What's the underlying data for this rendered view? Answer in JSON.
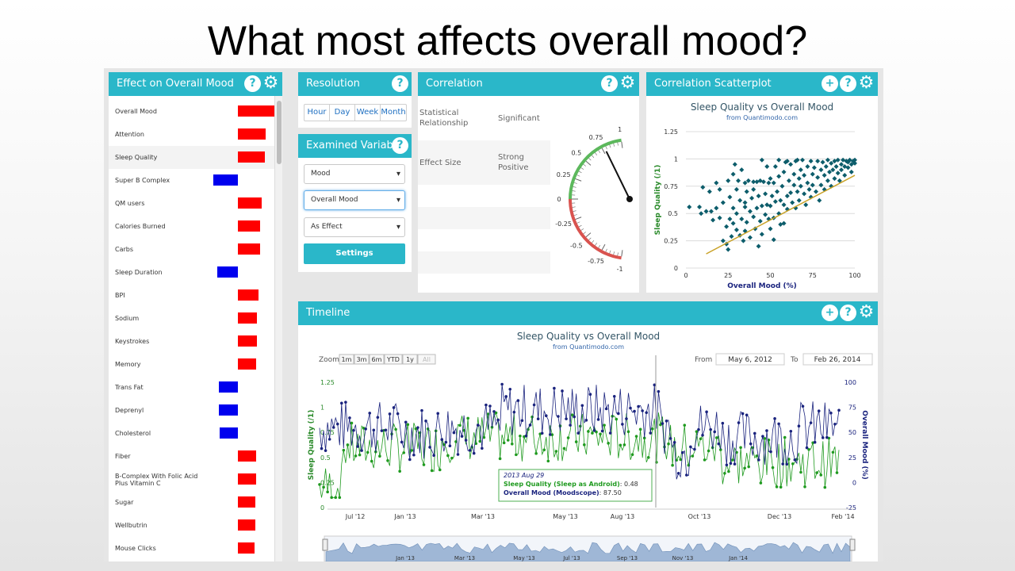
{
  "slide_title": "What most affects overall mood?",
  "effect_panel": {
    "title": "Effect on Overall Mood",
    "items": [
      {
        "label": "Overall Mood",
        "value": 1.0
      },
      {
        "label": "Attention",
        "value": 0.67
      },
      {
        "label": "Sleep Quality",
        "value": 0.65
      },
      {
        "label": "Super B Complex",
        "value": -0.6
      },
      {
        "label": "QM users",
        "value": 0.57
      },
      {
        "label": "Calories Burned",
        "value": 0.53
      },
      {
        "label": "Carbs",
        "value": 0.53
      },
      {
        "label": "Sleep Duration",
        "value": -0.5
      },
      {
        "label": "BPI",
        "value": 0.5
      },
      {
        "label": "Sodium",
        "value": 0.47
      },
      {
        "label": "Keystrokes",
        "value": 0.46
      },
      {
        "label": "Memory",
        "value": 0.45
      },
      {
        "label": "Trans Fat",
        "value": -0.46
      },
      {
        "label": "Deprenyl",
        "value": -0.46
      },
      {
        "label": "Cholesterol",
        "value": -0.44
      },
      {
        "label": "Fiber",
        "value": 0.44
      },
      {
        "label": "B-Complex With Folic Acid Plus Vitamin C",
        "value": 0.44
      },
      {
        "label": "Sugar",
        "value": 0.43
      },
      {
        "label": "Wellbutrin",
        "value": 0.43
      },
      {
        "label": "Mouse Clicks",
        "value": 0.4
      }
    ],
    "colors": {
      "positive": "#ff0000",
      "negative": "#0000ee"
    }
  },
  "resolution": {
    "title": "Resolution",
    "buttons": [
      "Hour",
      "Day",
      "Week",
      "Month"
    ]
  },
  "examined_variable": {
    "title": "Examined Variable",
    "selects": [
      "Mood",
      "Overall Mood",
      "As Effect"
    ],
    "settings_label": "Settings"
  },
  "correlation": {
    "title": "Correlation",
    "rows": [
      {
        "label": "Statistical Relationship",
        "value": "Significant"
      },
      {
        "label": "Effect Size",
        "value": "Strong Positive"
      }
    ],
    "gauge": {
      "value": 0.78,
      "ticks": [
        "1",
        "0.75",
        "0.5",
        "0.25",
        "0",
        "-0.25",
        "-0.5",
        "-0.75",
        "-1"
      ]
    }
  },
  "scatter_panel": {
    "title": "Correlation Scatterplot",
    "chart_data": {
      "type": "scatter",
      "title": "Sleep Quality vs Overall Mood",
      "subtitle": "from Quantimodo.com",
      "xlabel": "Overall Mood (%)",
      "ylabel": "Sleep Quality (/1)",
      "xlim": [
        0,
        100
      ],
      "ylim": [
        0,
        1.25
      ],
      "xticks": [
        "0",
        "25",
        "50",
        "75",
        "100"
      ],
      "yticks": [
        "0",
        "0.25",
        "0.5",
        "0.75",
        "1",
        "1.25"
      ],
      "trendline": [
        [
          12,
          0.13
        ],
        [
          100,
          0.85
        ]
      ],
      "point_color": "#0d5d6b",
      "trend_color": "#c9a227",
      "points": [
        [
          2,
          0.56
        ],
        [
          8,
          0.56
        ],
        [
          9,
          0.5
        ],
        [
          10,
          0.74
        ],
        [
          12,
          0.52
        ],
        [
          14,
          0.7
        ],
        [
          15,
          0.52
        ],
        [
          16,
          0.44
        ],
        [
          18,
          0.78
        ],
        [
          18,
          0.55
        ],
        [
          20,
          0.72
        ],
        [
          20,
          0.46
        ],
        [
          22,
          0.25
        ],
        [
          22,
          0.6
        ],
        [
          24,
          0.38
        ],
        [
          24,
          0.22
        ],
        [
          25,
          0.8
        ],
        [
          25,
          0.17
        ],
        [
          26,
          0.65
        ],
        [
          26,
          0.45
        ],
        [
          27,
          0.29
        ],
        [
          28,
          0.86
        ],
        [
          28,
          0.55
        ],
        [
          28,
          0.41
        ],
        [
          29,
          0.95
        ],
        [
          30,
          0.72
        ],
        [
          30,
          0.5
        ],
        [
          30,
          0.35
        ],
        [
          31,
          0.8
        ],
        [
          32,
          0.3
        ],
        [
          32,
          0.62
        ],
        [
          33,
          0.9
        ],
        [
          33,
          0.45
        ],
        [
          34,
          0.25
        ],
        [
          35,
          0.78
        ],
        [
          35,
          0.56
        ],
        [
          35,
          0.34
        ],
        [
          36,
          0.7
        ],
        [
          36,
          0.42
        ],
        [
          37,
          0.8
        ],
        [
          38,
          0.52
        ],
        [
          38,
          0.28
        ],
        [
          39,
          0.64
        ],
        [
          40,
          0.79
        ],
        [
          40,
          0.47
        ],
        [
          40,
          0.72
        ],
        [
          41,
          0.36
        ],
        [
          42,
          0.55
        ],
        [
          42,
          0.79
        ],
        [
          43,
          0.66
        ],
        [
          44,
          0.43
        ],
        [
          44,
          0.8
        ],
        [
          45,
          0.57
        ],
        [
          45,
          0.31
        ],
        [
          46,
          0.79
        ],
        [
          47,
          0.49
        ],
        [
          47,
          0.68
        ],
        [
          48,
          0.58
        ],
        [
          48,
          0.93
        ],
        [
          49,
          0.45
        ],
        [
          49,
          0.78
        ],
        [
          50,
          0.57
        ],
        [
          50,
          0.82
        ],
        [
          50,
          0.36
        ],
        [
          51,
          0.66
        ],
        [
          52,
          0.46
        ],
        [
          52,
          0.78
        ],
        [
          53,
          0.61
        ],
        [
          53,
          0.93
        ],
        [
          54,
          0.7
        ],
        [
          55,
          0.5
        ],
        [
          55,
          0.84
        ],
        [
          56,
          0.62
        ],
        [
          56,
          0.4
        ],
        [
          57,
          0.75
        ],
        [
          58,
          0.88
        ],
        [
          58,
          0.58
        ],
        [
          59,
          0.97
        ],
        [
          60,
          0.66
        ],
        [
          60,
          0.54
        ],
        [
          61,
          0.8
        ],
        [
          62,
          0.69
        ],
        [
          62,
          0.95
        ],
        [
          63,
          0.6
        ],
        [
          64,
          0.76
        ],
        [
          64,
          0.86
        ],
        [
          65,
          0.55
        ],
        [
          65,
          0.98
        ],
        [
          66,
          0.7
        ],
        [
          67,
          0.82
        ],
        [
          67,
          0.62
        ],
        [
          68,
          0.9
        ],
        [
          68,
          0.75
        ],
        [
          69,
          0.99
        ],
        [
          70,
          0.68
        ],
        [
          70,
          0.85
        ],
        [
          71,
          0.58
        ],
        [
          72,
          0.78
        ],
        [
          72,
          0.93
        ],
        [
          73,
          0.72
        ],
        [
          74,
          0.98
        ],
        [
          74,
          0.65
        ],
        [
          75,
          0.86
        ],
        [
          75,
          0.76
        ],
        [
          76,
          0.92
        ],
        [
          77,
          0.7
        ],
        [
          78,
          0.98
        ],
        [
          78,
          0.83
        ],
        [
          79,
          0.62
        ],
        [
          80,
          0.9
        ],
        [
          80,
          0.76
        ],
        [
          81,
          0.97
        ],
        [
          82,
          0.85
        ],
        [
          82,
          0.72
        ],
        [
          83,
          0.93
        ],
        [
          84,
          0.8
        ],
        [
          84,
          0.99
        ],
        [
          85,
          0.88
        ],
        [
          86,
          0.75
        ],
        [
          86,
          0.96
        ],
        [
          87,
          0.9
        ],
        [
          88,
          0.82
        ],
        [
          88,
          0.98
        ],
        [
          89,
          0.93
        ],
        [
          90,
          0.87
        ],
        [
          90,
          0.99
        ],
        [
          91,
          0.8
        ],
        [
          92,
          0.95
        ],
        [
          92,
          0.9
        ],
        [
          93,
          0.99
        ],
        [
          94,
          0.93
        ],
        [
          94,
          0.85
        ],
        [
          95,
          0.98
        ],
        [
          96,
          0.92
        ],
        [
          96,
          0.97
        ],
        [
          97,
          0.99
        ],
        [
          98,
          0.95
        ],
        [
          98,
          0.88
        ],
        [
          99,
          0.98
        ],
        [
          100,
          0.99
        ],
        [
          100,
          0.96
        ],
        [
          45,
          0.99
        ],
        [
          55,
          0.99
        ],
        [
          60,
          0.98
        ],
        [
          66,
          0.99
        ],
        [
          35,
          0.6
        ],
        [
          43,
          0.2
        ],
        [
          52,
          0.26
        ],
        [
          58,
          0.41
        ]
      ]
    }
  },
  "timeline_panel": {
    "title": "Timeline",
    "chart_data": {
      "type": "line",
      "title": "Sleep Quality vs Overall Mood",
      "subtitle": "from Quantimodo.com",
      "zoom_label": "Zoom",
      "zoom_buttons": [
        "1m",
        "3m",
        "6m",
        "YTD",
        "1y",
        "All"
      ],
      "from_label": "From",
      "from_value": "May 6, 2012",
      "to_label": "To",
      "to_value": "Feb 26, 2014",
      "x_ticks": [
        "Jul '12",
        "Jan '13",
        "Mar '13",
        "May '13",
        "Aug '13",
        "Oct '13",
        "Dec '13",
        "Feb '14"
      ],
      "navigator_ticks": [
        "Jan '13",
        "Mar '13",
        "May '13",
        "Jul '13",
        "Sep '13",
        "Nov '13",
        "Jan '14"
      ],
      "y_left": {
        "label": "Sleep Quality (/1)",
        "ticks": [
          "0",
          "0.25",
          "0.5",
          "0.75",
          "1",
          "1.25"
        ],
        "color": "#2a8a2a"
      },
      "y_right": {
        "label": "Overall Mood (%)",
        "ticks": [
          "-25",
          "0",
          "25",
          "50",
          "75",
          "100"
        ],
        "color": "#1a237e"
      },
      "series": [
        {
          "name": "Sleep Quality (Sleep as Android)",
          "color": "#1f9a1f"
        },
        {
          "name": "Overall Mood (Moodscope)",
          "color": "#1a237e"
        }
      ],
      "tooltip": {
        "date": "2013 Aug 29",
        "line1_name": "Sleep Quality (Sleep as Android)",
        "line1_value": "0.48",
        "line2_name": "Overall Mood (Moodscope)",
        "line2_value": "87.50"
      }
    }
  }
}
